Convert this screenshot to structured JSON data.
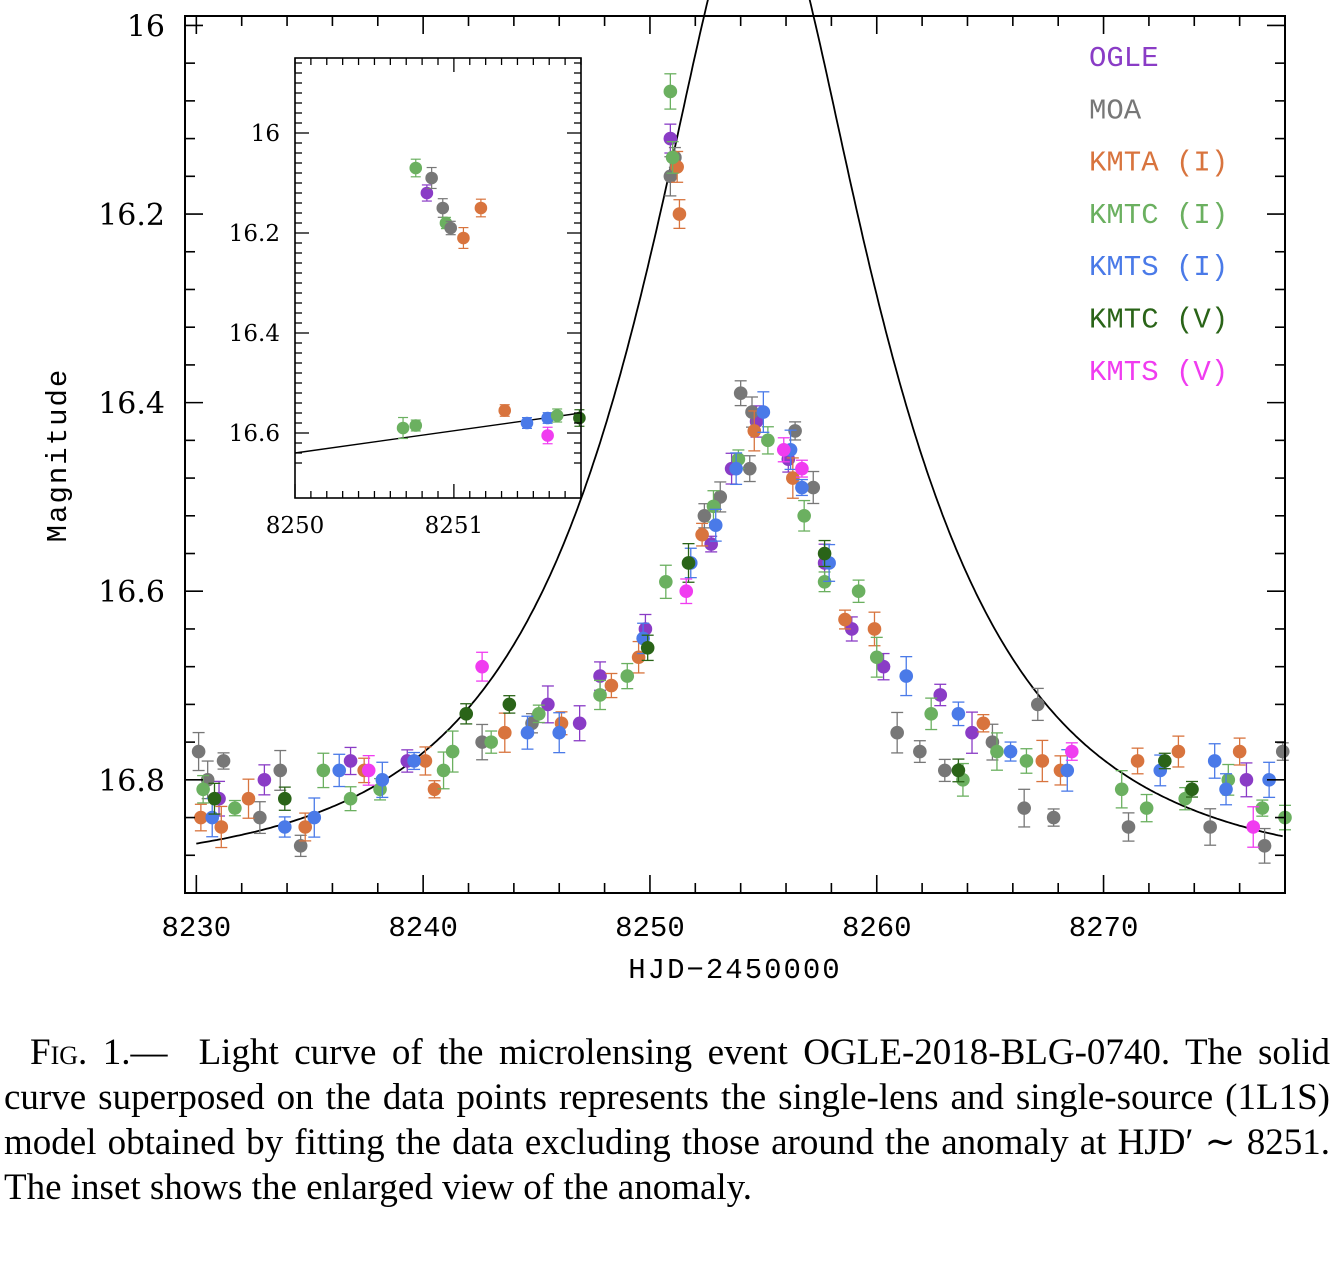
{
  "chart_data": {
    "type": "scatter",
    "xlabel": "HJD−2450000",
    "ylabel": "Magnitude",
    "xlim": [
      8229.5,
      8278
    ],
    "ylim": [
      16.92,
      15.99
    ],
    "y_inverted": true,
    "x_ticks": [
      "8230",
      "8240",
      "8250",
      "8260",
      "8270"
    ],
    "y_ticks": [
      "16",
      "16.2",
      "16.4",
      "16.6",
      "16.8"
    ],
    "legend_position": "top-right",
    "series": [
      {
        "name": "OGLE",
        "color": "#8a3cc6",
        "points": [
          [
            8231,
            16.82
          ],
          [
            8233,
            16.8
          ],
          [
            8236.8,
            16.78
          ],
          [
            8239.3,
            16.78
          ],
          [
            8245.5,
            16.72
          ],
          [
            8246.9,
            16.74
          ],
          [
            8247.8,
            16.69
          ],
          [
            8249.8,
            16.64
          ],
          [
            8250.9,
            16.12
          ],
          [
            8252.7,
            16.55
          ],
          [
            8253.6,
            16.47
          ],
          [
            8254.7,
            16.42
          ],
          [
            8256.1,
            16.46
          ],
          [
            8257.7,
            16.57
          ],
          [
            8258.9,
            16.64
          ],
          [
            8260.3,
            16.68
          ],
          [
            8262.8,
            16.71
          ],
          [
            8264.2,
            16.75
          ],
          [
            8276.3,
            16.8
          ]
        ]
      },
      {
        "name": "MOA",
        "color": "#777777",
        "points": [
          [
            8230.1,
            16.77
          ],
          [
            8230.5,
            16.8
          ],
          [
            8231.2,
            16.78
          ],
          [
            8232.8,
            16.84
          ],
          [
            8233.7,
            16.79
          ],
          [
            8234.6,
            16.87
          ],
          [
            8242.6,
            16.76
          ],
          [
            8244.8,
            16.74
          ],
          [
            8250.9,
            16.16
          ],
          [
            8251.1,
            16.14
          ],
          [
            8252.4,
            16.52
          ],
          [
            8253.1,
            16.5
          ],
          [
            8254.0,
            16.39
          ],
          [
            8254.4,
            16.47
          ],
          [
            8254.5,
            16.41
          ],
          [
            8256.4,
            16.43
          ],
          [
            8257.2,
            16.49
          ],
          [
            8260.9,
            16.75
          ],
          [
            8261.9,
            16.77
          ],
          [
            8263.0,
            16.79
          ],
          [
            8265.1,
            16.76
          ],
          [
            8266.5,
            16.83
          ],
          [
            8267.1,
            16.72
          ],
          [
            8267.8,
            16.84
          ],
          [
            8271.1,
            16.85
          ],
          [
            8274.7,
            16.85
          ],
          [
            8277.1,
            16.87
          ],
          [
            8277.9,
            16.77
          ]
        ]
      },
      {
        "name": "KMTA (I)",
        "color": "#d8743e",
        "points": [
          [
            8230.2,
            16.84
          ],
          [
            8231.1,
            16.85
          ],
          [
            8232.3,
            16.82
          ],
          [
            8234.8,
            16.85
          ],
          [
            8237.4,
            16.79
          ],
          [
            8240.1,
            16.78
          ],
          [
            8240.5,
            16.81
          ],
          [
            8243.6,
            16.75
          ],
          [
            8246.1,
            16.74
          ],
          [
            8248.3,
            16.7
          ],
          [
            8249.5,
            16.67
          ],
          [
            8251.2,
            16.15
          ],
          [
            8251.3,
            16.2
          ],
          [
            8252.3,
            16.54
          ],
          [
            8254.6,
            16.43
          ],
          [
            8256.3,
            16.48
          ],
          [
            8258.6,
            16.63
          ],
          [
            8259.9,
            16.64
          ],
          [
            8264.7,
            16.74
          ],
          [
            8267.3,
            16.78
          ],
          [
            8268.1,
            16.79
          ],
          [
            8271.5,
            16.78
          ],
          [
            8273.3,
            16.77
          ],
          [
            8276.0,
            16.77
          ]
        ]
      },
      {
        "name": "KMTC (I)",
        "color": "#6bb060",
        "points": [
          [
            8230.3,
            16.81
          ],
          [
            8231.7,
            16.83
          ],
          [
            8235.6,
            16.79
          ],
          [
            8236.8,
            16.82
          ],
          [
            8238.1,
            16.81
          ],
          [
            8240.9,
            16.79
          ],
          [
            8241.3,
            16.77
          ],
          [
            8243.0,
            16.76
          ],
          [
            8245.1,
            16.73
          ],
          [
            8247.8,
            16.71
          ],
          [
            8249.0,
            16.69
          ],
          [
            8250.7,
            16.59
          ],
          [
            8250.9,
            16.07
          ],
          [
            8251.0,
            16.14
          ],
          [
            8252.8,
            16.51
          ],
          [
            8253.9,
            16.46
          ],
          [
            8255.2,
            16.44
          ],
          [
            8256.8,
            16.52
          ],
          [
            8257.7,
            16.59
          ],
          [
            8259.2,
            16.6
          ],
          [
            8260.0,
            16.67
          ],
          [
            8262.4,
            16.73
          ],
          [
            8263.8,
            16.8
          ],
          [
            8265.3,
            16.77
          ],
          [
            8266.6,
            16.78
          ],
          [
            8270.8,
            16.81
          ],
          [
            8271.9,
            16.83
          ],
          [
            8273.6,
            16.82
          ],
          [
            8275.5,
            16.8
          ],
          [
            8277.0,
            16.83
          ],
          [
            8278.0,
            16.84
          ]
        ]
      },
      {
        "name": "KMTS (I)",
        "color": "#4a7ae8",
        "points": [
          [
            8230.7,
            16.84
          ],
          [
            8233.9,
            16.85
          ],
          [
            8235.2,
            16.84
          ],
          [
            8236.3,
            16.79
          ],
          [
            8238.2,
            16.8
          ],
          [
            8239.6,
            16.78
          ],
          [
            8244.6,
            16.75
          ],
          [
            8246.0,
            16.75
          ],
          [
            8249.7,
            16.65
          ],
          [
            8251.8,
            16.57
          ],
          [
            8252.9,
            16.53
          ],
          [
            8253.8,
            16.47
          ],
          [
            8255.0,
            16.41
          ],
          [
            8256.2,
            16.45
          ],
          [
            8256.7,
            16.49
          ],
          [
            8257.9,
            16.57
          ],
          [
            8261.3,
            16.69
          ],
          [
            8263.6,
            16.73
          ],
          [
            8265.9,
            16.77
          ],
          [
            8268.4,
            16.79
          ],
          [
            8272.5,
            16.79
          ],
          [
            8274.9,
            16.78
          ],
          [
            8275.4,
            16.81
          ],
          [
            8277.3,
            16.8
          ]
        ]
      },
      {
        "name": "KMTC (V)",
        "color": "#2a6418",
        "points": [
          [
            8230.8,
            16.82
          ],
          [
            8233.9,
            16.82
          ],
          [
            8241.9,
            16.73
          ],
          [
            8243.8,
            16.72
          ],
          [
            8249.9,
            16.66
          ],
          [
            8251.7,
            16.57
          ],
          [
            8257.7,
            16.56
          ],
          [
            8263.6,
            16.79
          ],
          [
            8272.7,
            16.78
          ],
          [
            8273.9,
            16.81
          ]
        ]
      },
      {
        "name": "KMTS (V)",
        "color": "#f03cf0",
        "points": [
          [
            8237.6,
            16.79
          ],
          [
            8242.6,
            16.68
          ],
          [
            8251.6,
            16.6
          ],
          [
            8255.9,
            16.45
          ],
          [
            8256.7,
            16.47
          ],
          [
            8268.6,
            16.77
          ],
          [
            8276.6,
            16.85
          ]
        ]
      }
    ],
    "model_curve": {
      "name": "1L1S model",
      "t0": 8254.8,
      "u0": 0.4,
      "tE": 10.0,
      "baseline_mag": 16.9
    },
    "inset": {
      "xlim": [
        8250,
        8251.8
      ],
      "ylim": [
        16.73,
        15.85
      ],
      "x_ticks": [
        "8250",
        "8251"
      ],
      "y_ticks": [
        "16",
        "16.2",
        "16.4",
        "16.6"
      ],
      "points": [
        {
          "series": "KMTC (I)",
          "x": 8250.76,
          "y": 16.07
        },
        {
          "series": "OGLE",
          "x": 8250.83,
          "y": 16.12
        },
        {
          "series": "MOA",
          "x": 8250.86,
          "y": 16.09
        },
        {
          "series": "MOA",
          "x": 8250.93,
          "y": 16.15
        },
        {
          "series": "KMTC (I)",
          "x": 8250.95,
          "y": 16.18
        },
        {
          "series": "MOA",
          "x": 8250.98,
          "y": 16.19
        },
        {
          "series": "KMTA (I)",
          "x": 8251.06,
          "y": 16.21
        },
        {
          "series": "KMTA (I)",
          "x": 8251.17,
          "y": 16.15
        },
        {
          "series": "KMTC (I)",
          "x": 8250.68,
          "y": 16.59
        },
        {
          "series": "KMTC (I)",
          "x": 8250.76,
          "y": 16.585
        },
        {
          "series": "KMTA (I)",
          "x": 8251.32,
          "y": 16.555
        },
        {
          "series": "KMTS (I)",
          "x": 8251.46,
          "y": 16.58
        },
        {
          "series": "KMTS (I)",
          "x": 8251.59,
          "y": 16.57
        },
        {
          "series": "KMTC (I)",
          "x": 8251.65,
          "y": 16.565
        },
        {
          "series": "KMTS (V)",
          "x": 8251.59,
          "y": 16.605
        },
        {
          "series": "KMTC (V)",
          "x": 8251.79,
          "y": 16.57
        }
      ],
      "model_line": [
        [
          8250,
          16.64
        ],
        [
          8251.8,
          16.56
        ]
      ]
    }
  },
  "caption": {
    "label": "Fig. 1.—",
    "text": "Light curve of the microlensing event OGLE-2018-BLG-0740. The solid curve superposed on the data points represents the single-lens and single-source (1L1S) model obtained by fitting the data excluding those around the anomaly at HJD′ ∼ 8251. The inset shows the enlarged view of the anomaly."
  }
}
